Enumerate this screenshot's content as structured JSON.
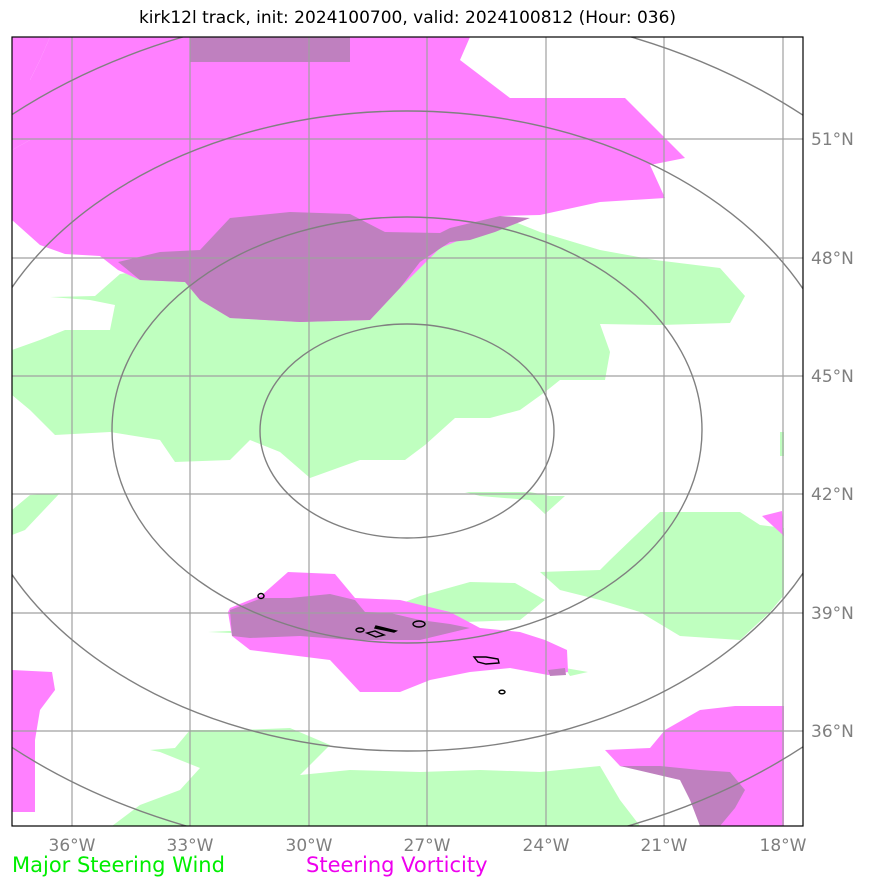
{
  "title": "kirk12l track, init: 2024100700, valid: 2024100812 (Hour: 036)",
  "map": {
    "lon_labels": [
      "36°W",
      "33°W",
      "30°W",
      "27°W",
      "24°W",
      "21°W",
      "18°W"
    ],
    "lat_labels": [
      "51°N",
      "48°N",
      "45°N",
      "42°N",
      "39°N",
      "36°N"
    ],
    "gridline_color": "#a0a0a0",
    "range_ring_color": "#808080"
  },
  "layers": {
    "wind_color": "#bfffbf",
    "vorticity_color": "#ff80ff",
    "overlap_color": "#bf80bf"
  },
  "legend": {
    "wind_label": "Major Steering Wind",
    "wind_color": "#00ee00",
    "vorticity_label": "Steering Vorticity",
    "vorticity_color": "#ee00ee"
  }
}
